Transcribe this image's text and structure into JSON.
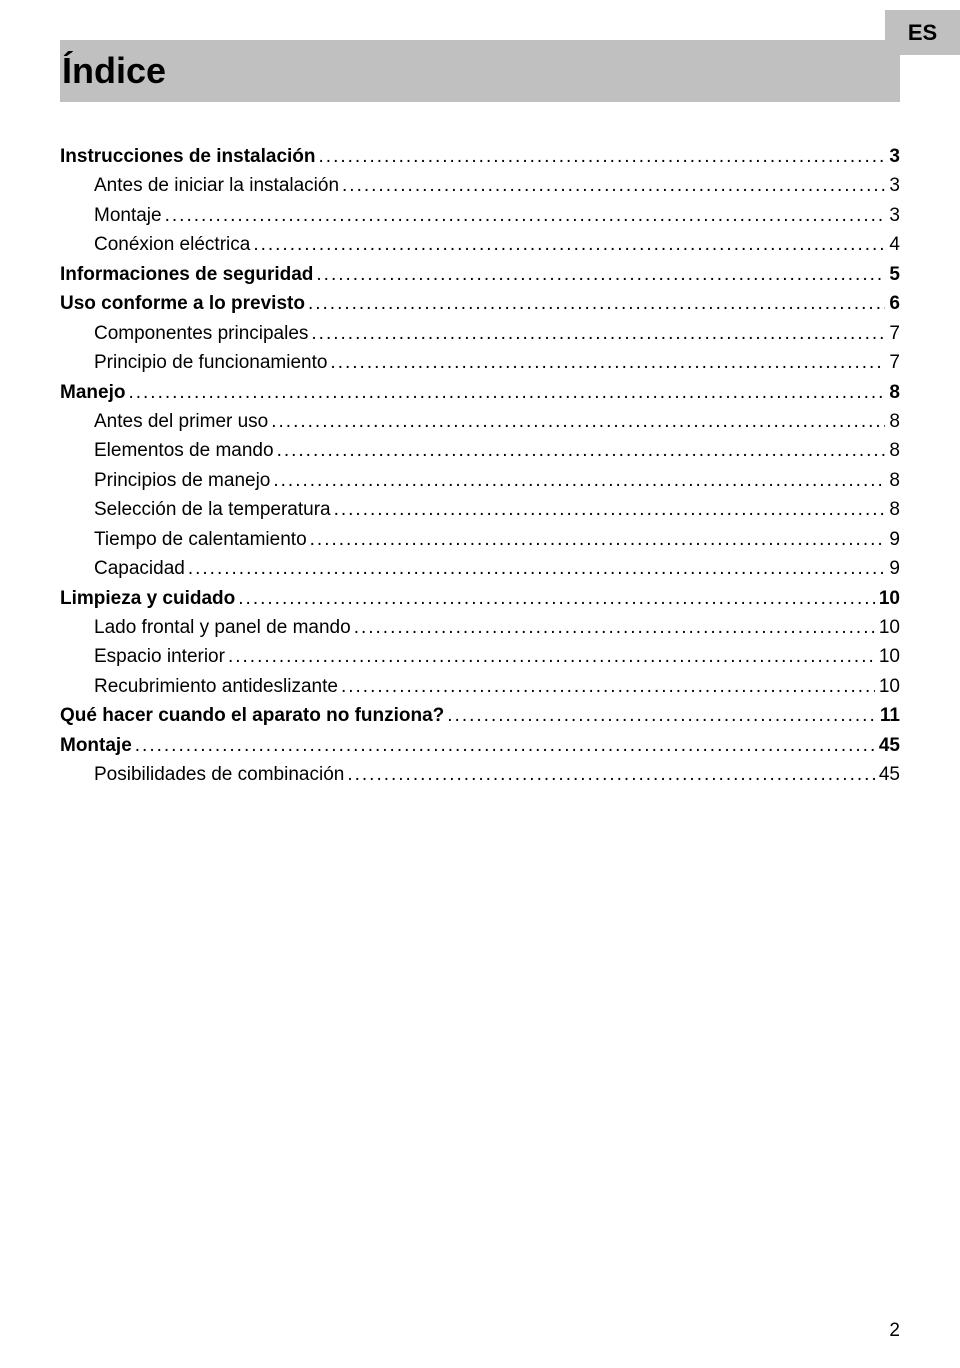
{
  "lang_code": "ES",
  "title": "Índice",
  "page_number": "2",
  "toc": [
    {
      "label": "Instrucciones de instalación",
      "page": "3",
      "bold": true,
      "indent": 0
    },
    {
      "label": "Antes de iniciar la instalación",
      "page": "3",
      "bold": false,
      "indent": 1
    },
    {
      "label": "Montaje",
      "page": "3",
      "bold": false,
      "indent": 1
    },
    {
      "label": "Conéxion eléctrica",
      "page": "4",
      "bold": false,
      "indent": 1
    },
    {
      "label": "Informaciones de seguridad",
      "page": "5",
      "bold": true,
      "indent": 0
    },
    {
      "label": "Uso conforme a lo previsto",
      "page": "6",
      "bold": true,
      "indent": 0
    },
    {
      "label": "Componentes principales",
      "page": "7",
      "bold": false,
      "indent": 1
    },
    {
      "label": "Principio de funcionamiento",
      "page": "7",
      "bold": false,
      "indent": 1
    },
    {
      "label": "Manejo",
      "page": "8",
      "bold": true,
      "indent": 0
    },
    {
      "label": "Antes del primer uso",
      "page": "8",
      "bold": false,
      "indent": 1
    },
    {
      "label": "Elementos de mando",
      "page": "8",
      "bold": false,
      "indent": 1
    },
    {
      "label": "Principios de manejo",
      "page": "8",
      "bold": false,
      "indent": 1
    },
    {
      "label": "Selección de la temperatura",
      "page": "8",
      "bold": false,
      "indent": 1
    },
    {
      "label": "Tiempo de calentamiento",
      "page": "9",
      "bold": false,
      "indent": 1
    },
    {
      "label": "Capacidad",
      "page": "9",
      "bold": false,
      "indent": 1
    },
    {
      "label": "Limpieza y cuidado",
      "page": "10",
      "bold": true,
      "indent": 0
    },
    {
      "label": "Lado frontal y panel de mando",
      "page": "10",
      "bold": false,
      "indent": 1
    },
    {
      "label": "Espacio interior",
      "page": "10",
      "bold": false,
      "indent": 1
    },
    {
      "label": "Recubrimiento antideslizante",
      "page": "10",
      "bold": false,
      "indent": 1
    },
    {
      "label": "Qué hacer cuando el aparato no funziona?",
      "page": "11",
      "bold": true,
      "indent": 0
    },
    {
      "label": "Montaje",
      "page": "45",
      "bold": true,
      "indent": 0
    },
    {
      "label": "Posibilidades de combinación",
      "page": "45",
      "bold": false,
      "indent": 1
    }
  ]
}
